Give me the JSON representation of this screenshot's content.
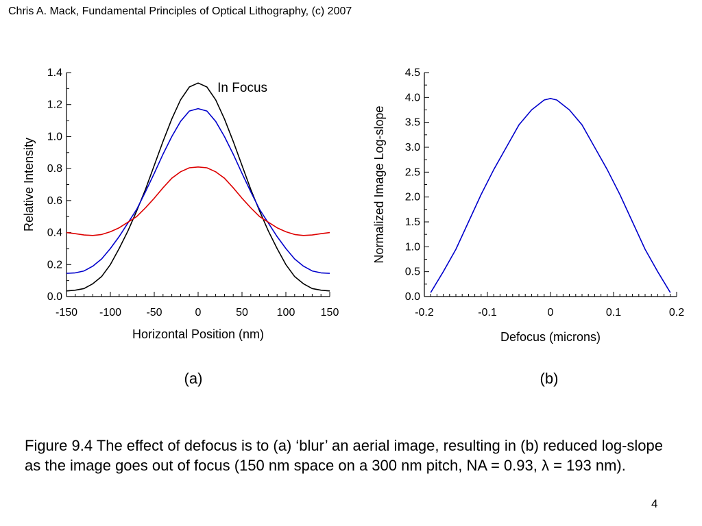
{
  "header": {
    "text": "Chris A. Mack, Fundamental Principles of Optical Lithography, (c) 2007"
  },
  "chart_data": [
    {
      "id": "a",
      "type": "line",
      "panel_label": "(a)",
      "xlabel": "Horizontal Position (nm)",
      "ylabel": "Relative Intensity",
      "xlim": [
        -150,
        150
      ],
      "ylim": [
        0,
        1.4
      ],
      "xticks": [
        "-150",
        "-100",
        "-50",
        "0",
        "50",
        "100",
        "150"
      ],
      "yticks": [
        "0.0",
        "0.2",
        "0.4",
        "0.6",
        "0.8",
        "1.0",
        "1.2",
        "1.4"
      ],
      "annotation": {
        "text": "In Focus",
        "x": 22,
        "y": 1.28
      },
      "x": [
        -150,
        -140,
        -130,
        -120,
        -110,
        -100,
        -90,
        -80,
        -70,
        -60,
        -50,
        -40,
        -30,
        -20,
        -10,
        0,
        10,
        20,
        30,
        40,
        50,
        60,
        70,
        80,
        90,
        100,
        110,
        120,
        130,
        140,
        150
      ],
      "series": [
        {
          "color": "#000000",
          "values": [
            0.035,
            0.04,
            0.05,
            0.08,
            0.125,
            0.2,
            0.3,
            0.41,
            0.535,
            0.67,
            0.82,
            0.97,
            1.11,
            1.23,
            1.31,
            1.335,
            1.31,
            1.23,
            1.11,
            0.97,
            0.82,
            0.67,
            0.535,
            0.41,
            0.3,
            0.2,
            0.125,
            0.08,
            0.05,
            0.04,
            0.035
          ]
        },
        {
          "color": "#0000cc",
          "values": [
            0.145,
            0.148,
            0.16,
            0.19,
            0.235,
            0.3,
            0.375,
            0.46,
            0.545,
            0.655,
            0.77,
            0.89,
            1.0,
            1.095,
            1.16,
            1.175,
            1.16,
            1.095,
            1.0,
            0.89,
            0.77,
            0.655,
            0.545,
            0.46,
            0.375,
            0.3,
            0.235,
            0.19,
            0.16,
            0.148,
            0.145
          ]
        },
        {
          "color": "#dd0000",
          "values": [
            0.4,
            0.393,
            0.385,
            0.382,
            0.388,
            0.405,
            0.43,
            0.465,
            0.5,
            0.555,
            0.615,
            0.68,
            0.74,
            0.78,
            0.805,
            0.81,
            0.805,
            0.78,
            0.74,
            0.68,
            0.615,
            0.555,
            0.5,
            0.465,
            0.43,
            0.405,
            0.388,
            0.382,
            0.385,
            0.393,
            0.4
          ]
        }
      ]
    },
    {
      "id": "b",
      "type": "line",
      "panel_label": "(b)",
      "xlabel": "Defocus (microns)",
      "ylabel": "Normalized Image Log-slope",
      "xlim": [
        -0.2,
        0.2
      ],
      "ylim": [
        0,
        4.5
      ],
      "xticks": [
        "-0.2",
        "-0.1",
        "0",
        "0.1",
        "0.2"
      ],
      "yticks": [
        "0.0",
        "0.5",
        "1.0",
        "1.5",
        "2.0",
        "2.5",
        "3.0",
        "3.5",
        "4.0",
        "4.5"
      ],
      "x": [
        -0.19,
        -0.17,
        -0.15,
        -0.13,
        -0.11,
        -0.09,
        -0.07,
        -0.05,
        -0.03,
        -0.01,
        0.0,
        0.01,
        0.03,
        0.05,
        0.07,
        0.09,
        0.11,
        0.13,
        0.15,
        0.17,
        0.19
      ],
      "series": [
        {
          "color": "#0000cc",
          "values": [
            0.08,
            0.5,
            0.95,
            1.5,
            2.05,
            2.55,
            3.0,
            3.45,
            3.75,
            3.95,
            3.98,
            3.95,
            3.75,
            3.45,
            3.0,
            2.55,
            2.05,
            1.5,
            0.95,
            0.5,
            0.08
          ]
        }
      ]
    }
  ],
  "caption": {
    "text": "Figure 9.4  The effect of defocus is to (a) ‘blur’ an aerial image, resulting in (b) reduced log-slope as the image goes out of focus (150 nm space on a 300 nm pitch, NA = 0.93, λ = 193 nm)."
  },
  "page_number": "4"
}
